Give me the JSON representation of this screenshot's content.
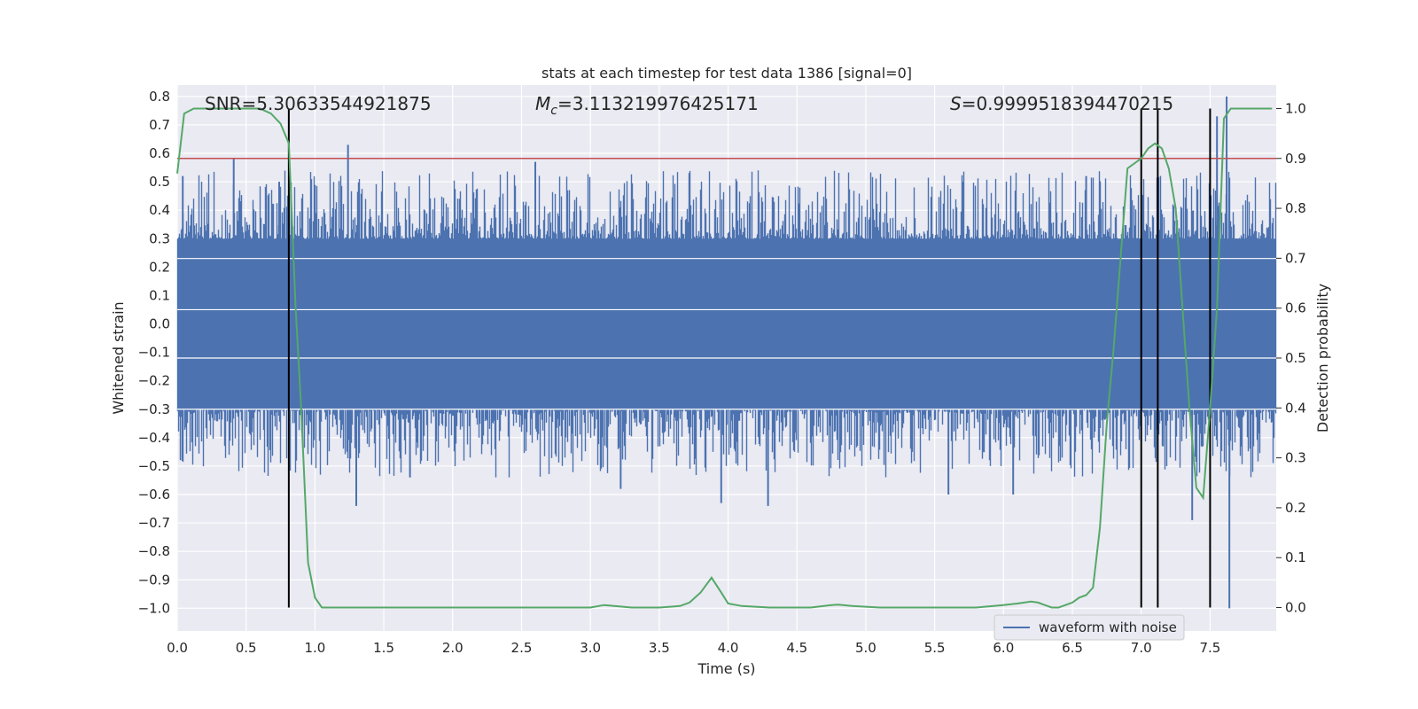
{
  "chart_data": {
    "type": "line",
    "title": "stats at each timestep for test data 1386 [signal=0]",
    "xlabel": "Time (s)",
    "ylabel": "Whitened strain",
    "y2label": "Detection probability",
    "xlim": [
      0.0,
      7.98
    ],
    "ylim": [
      -1.08,
      0.84
    ],
    "y2lim": [
      -0.047,
      1.047
    ],
    "xticks": [
      "0.0",
      "0.5",
      "1.0",
      "1.5",
      "2.0",
      "2.5",
      "3.0",
      "3.5",
      "4.0",
      "4.5",
      "5.0",
      "5.5",
      "6.0",
      "6.5",
      "7.0",
      "7.5"
    ],
    "yticks": [
      "0.8",
      "0.7",
      "0.6",
      "0.5",
      "0.4",
      "0.3",
      "0.2",
      "0.1",
      "0.0",
      "−0.1",
      "−0.2",
      "−0.3",
      "−0.4",
      "−0.5",
      "−0.6",
      "−0.7",
      "−0.8",
      "−0.9",
      "−1.0"
    ],
    "y2ticks": [
      "1.0",
      "0.9",
      "0.8",
      "0.7",
      "0.6",
      "0.5",
      "0.4",
      "0.3",
      "0.2",
      "0.1",
      "0.0"
    ],
    "annotations": {
      "snr": "SNR=5.30633544921875",
      "mc_symbol": "M",
      "mc_subscript": "c",
      "mc_value": "=3.113219976425171",
      "s_symbol": "S",
      "s_value": "=0.9999518394470215"
    },
    "legend": [
      "waveform with noise"
    ],
    "threshold_probability": 0.9,
    "trigger_times": [
      0.81,
      7.0,
      7.12,
      7.5
    ],
    "waveform": {
      "name": "waveform with noise",
      "envelope_min": -0.3,
      "envelope_max": 0.3,
      "peaks": [
        {
          "t": 0.04,
          "v": 0.52
        },
        {
          "t": 0.41,
          "v": 0.58
        },
        {
          "t": 0.74,
          "v": 0.5
        },
        {
          "t": 1.24,
          "v": 0.63
        },
        {
          "t": 1.3,
          "v": -0.64
        },
        {
          "t": 1.69,
          "v": -0.54
        },
        {
          "t": 2.6,
          "v": 0.57
        },
        {
          "t": 3.22,
          "v": -0.58
        },
        {
          "t": 3.73,
          "v": -0.08
        },
        {
          "t": 3.95,
          "v": -0.63
        },
        {
          "t": 4.29,
          "v": -0.64
        },
        {
          "t": 5.6,
          "v": -0.6
        },
        {
          "t": 6.07,
          "v": -0.6
        },
        {
          "t": 6.6,
          "v": 0.52
        },
        {
          "t": 7.37,
          "v": -0.69
        },
        {
          "t": 7.55,
          "v": 0.73
        },
        {
          "t": 7.62,
          "v": 0.8
        },
        {
          "t": 7.64,
          "v": -1.0
        }
      ]
    },
    "series": [
      {
        "name": "detection probability",
        "axis": "right",
        "color": "#55a868",
        "x": [
          0.0,
          0.05,
          0.12,
          0.2,
          0.3,
          0.4,
          0.5,
          0.6,
          0.68,
          0.75,
          0.81,
          0.86,
          0.9,
          0.95,
          1.0,
          1.05,
          1.1,
          1.2,
          1.5,
          2.0,
          2.5,
          3.0,
          3.1,
          3.3,
          3.5,
          3.65,
          3.72,
          3.8,
          3.88,
          3.95,
          4.0,
          4.1,
          4.3,
          4.5,
          4.6,
          4.75,
          4.8,
          4.9,
          5.1,
          5.5,
          5.8,
          6.0,
          6.1,
          6.2,
          6.25,
          6.3,
          6.35,
          6.4,
          6.45,
          6.5,
          6.55,
          6.6,
          6.65,
          6.7,
          6.75,
          6.8,
          6.9,
          7.0,
          7.05,
          7.1,
          7.15,
          7.2,
          7.25,
          7.3,
          7.35,
          7.4,
          7.45,
          7.5,
          7.55,
          7.6,
          7.65,
          7.7,
          7.8,
          7.95
        ],
        "values": [
          0.87,
          0.99,
          1.0,
          1.0,
          1.0,
          1.0,
          1.0,
          1.0,
          0.99,
          0.97,
          0.93,
          0.6,
          0.4,
          0.09,
          0.02,
          0.0,
          0.0,
          0.0,
          0.0,
          0.0,
          0.0,
          0.0,
          0.005,
          0.0,
          0.0,
          0.003,
          0.01,
          0.03,
          0.06,
          0.03,
          0.008,
          0.003,
          0.0,
          0.0,
          0.0,
          0.005,
          0.006,
          0.003,
          0.0,
          0.0,
          0.0,
          0.005,
          0.008,
          0.012,
          0.01,
          0.005,
          0.0,
          0.0,
          0.005,
          0.01,
          0.02,
          0.025,
          0.04,
          0.16,
          0.37,
          0.52,
          0.88,
          0.9,
          0.92,
          0.93,
          0.92,
          0.88,
          0.8,
          0.6,
          0.4,
          0.24,
          0.22,
          0.4,
          0.6,
          0.98,
          1.0,
          1.0,
          1.0,
          1.0
        ]
      }
    ],
    "colors": {
      "background": "#eaeaf2",
      "grid": "#ffffff",
      "waveform": "#4c72b0",
      "probability": "#55a868",
      "threshold": "#c44e52",
      "trigger": "#000000"
    }
  }
}
